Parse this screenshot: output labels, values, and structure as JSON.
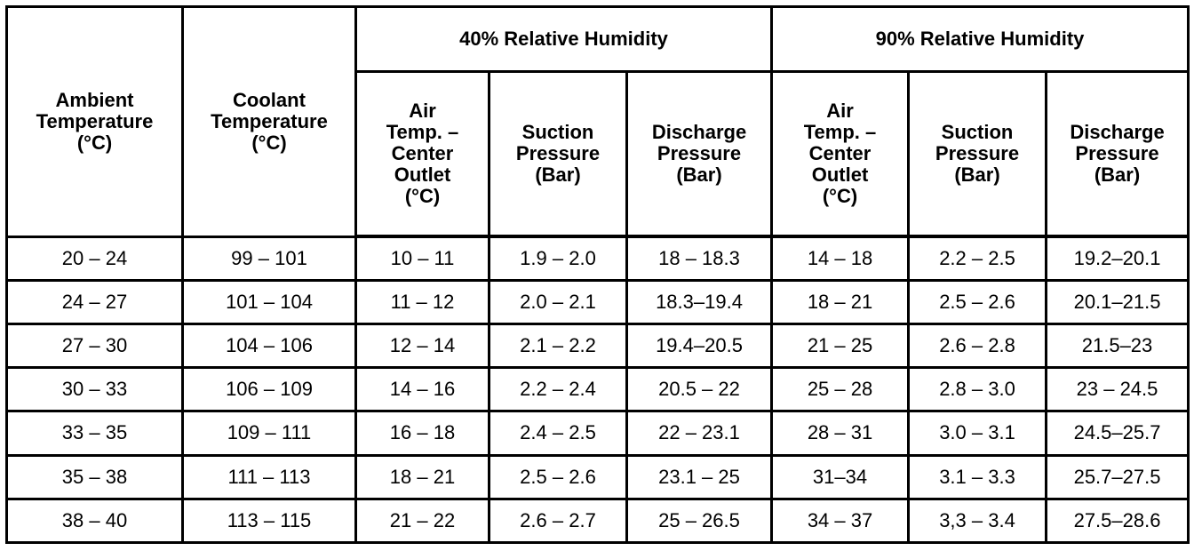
{
  "header": {
    "ambient": "Ambient\nTemperature\n(°C)",
    "coolant": "Coolant\nTemperature\n(°C)",
    "group_40": "40% Relative Humidity",
    "group_90": "90% Relative Humidity",
    "subcolumns": [
      "Air\nTemp. –\nCenter\nOutlet\n(°C)",
      "Suction\nPressure\n(Bar)",
      "Discharge\nPressure\n(Bar)",
      "Air\nTemp. –\nCenter\nOutlet\n(°C)",
      "Suction\nPressure\n(Bar)",
      "Discharge\nPressure\n(Bar)"
    ]
  },
  "table": {
    "rows": [
      [
        "20 – 24",
        "99 – 101",
        "10 – 11",
        "1.9 – 2.0",
        "18 – 18.3",
        "14 – 18",
        "2.2 – 2.5",
        "19.2–20.1"
      ],
      [
        "24 – 27",
        "101 – 104",
        "11 – 12",
        "2.0 – 2.1",
        "18.3–19.4",
        "18 – 21",
        "2.5 – 2.6",
        "20.1–21.5"
      ],
      [
        "27 – 30",
        "104 – 106",
        "12 – 14",
        "2.1 – 2.2",
        "19.4–20.5",
        "21 – 25",
        "2.6 – 2.8",
        "21.5–23"
      ],
      [
        "30 – 33",
        "106 – 109",
        "14 – 16",
        "2.2 – 2.4",
        "20.5 – 22",
        "25 – 28",
        "2.8 – 3.0",
        "23 – 24.5"
      ],
      [
        "33 – 35",
        "109 – 111",
        "16 – 18",
        "2.4 – 2.5",
        "22 – 23.1",
        "28 – 31",
        "3.0 – 3.1",
        "24.5–25.7"
      ],
      [
        "35 – 38",
        "111 – 113",
        "18 – 21",
        "2.5 – 2.6",
        "23.1 – 25",
        "31–34",
        "3.1 – 3.3",
        "25.7–27.5"
      ],
      [
        "38 – 40",
        "113 – 115",
        "21 – 22",
        "2.6 – 2.7",
        "25 – 26.5",
        "34 – 37",
        "3,3 – 3.4",
        "27.5–28.6"
      ]
    ]
  }
}
